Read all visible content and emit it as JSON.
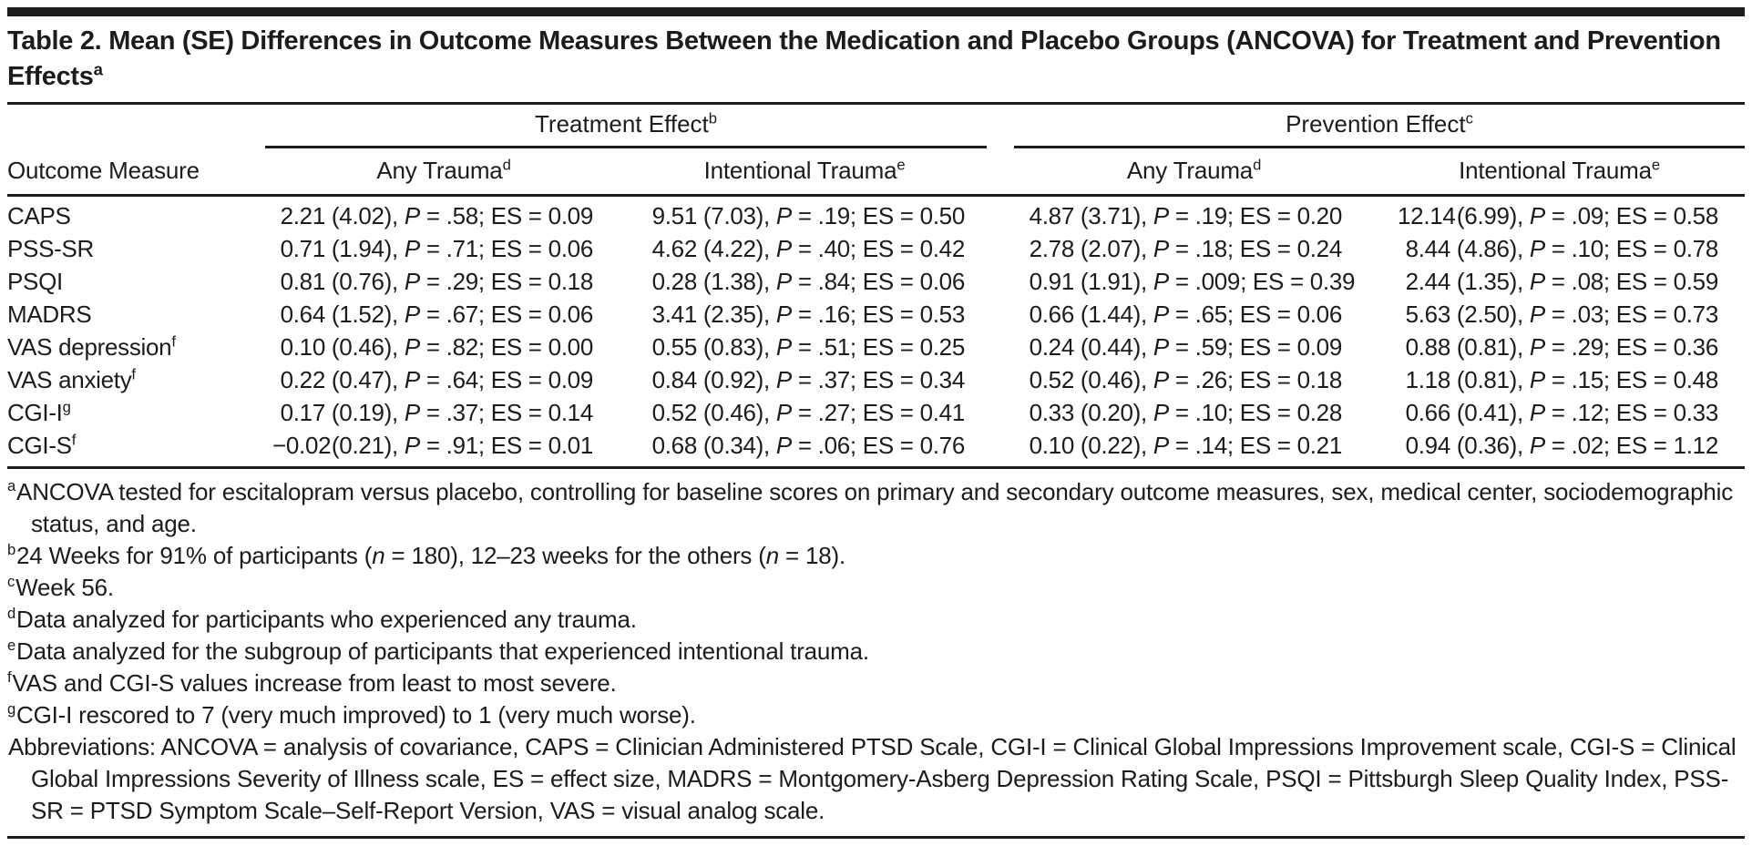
{
  "title": {
    "text": "Table 2. Mean (SE) Differences in Outcome Measures Between the Medication and Placebo Groups (ANCOVA) for Treatment and Prevention Effects",
    "sup": "a"
  },
  "table": {
    "row_header": "Outcome Measure",
    "col_groups": [
      {
        "label": "Treatment Effect",
        "sup": "b"
      },
      {
        "label": "Prevention Effect",
        "sup": "c"
      }
    ],
    "sub_headers": [
      {
        "label": "Any Trauma",
        "sup": "d"
      },
      {
        "label": "Intentional Trauma",
        "sup": "e"
      },
      {
        "label": "Any Trauma",
        "sup": "d"
      },
      {
        "label": "Intentional Trauma",
        "sup": "e"
      }
    ],
    "rows": [
      {
        "measure": "CAPS",
        "sup": "",
        "cells": [
          "2.21 (4.02), P = .58; ES = 0.09",
          "9.51 (7.03), P = .19; ES = 0.50",
          "4.87 (3.71), P = .19; ES = 0.20",
          "12.14 (6.99), P = .09; ES = 0.58"
        ]
      },
      {
        "measure": "PSS-SR",
        "sup": "",
        "cells": [
          "0.71 (1.94), P = .71; ES = 0.06",
          "4.62 (4.22), P = .40; ES = 0.42",
          "2.78 (2.07), P = .18; ES = 0.24",
          "8.44 (4.86), P = .10; ES = 0.78"
        ]
      },
      {
        "measure": "PSQI",
        "sup": "",
        "cells": [
          "0.81 (0.76), P = .29; ES = 0.18",
          "0.28 (1.38), P = .84; ES = 0.06",
          "0.91 (1.91), P = .009; ES = 0.39",
          "2.44 (1.35), P = .08; ES = 0.59"
        ]
      },
      {
        "measure": "MADRS",
        "sup": "",
        "cells": [
          "0.64 (1.52), P = .67; ES = 0.06",
          "3.41 (2.35), P = .16; ES = 0.53",
          "0.66 (1.44), P = .65; ES = 0.06",
          "5.63 (2.50), P = .03; ES = 0.73"
        ]
      },
      {
        "measure": "VAS depression",
        "sup": "f",
        "cells": [
          "0.10 (0.46), P = .82; ES = 0.00",
          "0.55 (0.83), P = .51; ES = 0.25",
          "0.24 (0.44), P = .59; ES = 0.09",
          "0.88 (0.81), P = .29; ES = 0.36"
        ]
      },
      {
        "measure": "VAS anxiety",
        "sup": "f",
        "cells": [
          "0.22 (0.47), P = .64; ES = 0.09",
          "0.84 (0.92), P = .37; ES = 0.34",
          "0.52 (0.46), P = .26; ES = 0.18",
          "1.18 (0.81), P = .15; ES = 0.48"
        ]
      },
      {
        "measure": "CGI-I",
        "sup": "g",
        "cells": [
          "0.17 (0.19), P = .37; ES = 0.14",
          "0.52 (0.46), P = .27; ES = 0.41",
          "0.33 (0.20), P = .10; ES = 0.28",
          "0.66 (0.41), P = .12; ES = 0.33"
        ]
      },
      {
        "measure": "CGI-S",
        "sup": "f",
        "cells": [
          "−0.02 (0.21), P = .91; ES = 0.01",
          "0.68 (0.34), P = .06; ES = 0.76",
          "0.10 (0.22), P = .14; ES = 0.21",
          "0.94 (0.36), P = .02; ES = 1.12"
        ]
      }
    ]
  },
  "footnotes": [
    {
      "sup": "a",
      "text": "ANCOVA tested for escitalopram versus placebo, controlling for baseline scores on primary and secondary outcome measures, sex, medical center, sociodemographic status, and age."
    },
    {
      "sup": "b",
      "text": "24 Weeks for 91% of participants (n = 180), 12–23 weeks for the others (n = 18)."
    },
    {
      "sup": "c",
      "text": "Week 56."
    },
    {
      "sup": "d",
      "text": "Data analyzed for participants who experienced any trauma."
    },
    {
      "sup": "e",
      "text": "Data analyzed for the subgroup of participants that experienced intentional trauma."
    },
    {
      "sup": "f",
      "text": "VAS and CGI-S values increase from least to most severe."
    },
    {
      "sup": "g",
      "text": "CGI-I rescored to 7 (very much improved) to 1 (very much worse)."
    },
    {
      "sup": "",
      "text": "Abbreviations: ANCOVA = analysis of covariance, CAPS = Clinician Administered PTSD Scale, CGI-I = Clinical Global Impressions Improvement scale, CGI-S = Clinical Global Impressions Severity of Illness scale, ES = effect size, MADRS = Montgomery-Asberg Depression Rating Scale, PSQI = Pittsburgh Sleep Quality Index, PSS-SR = PTSD Symptom Scale–Self-Report Version, VAS = visual analog scale."
    }
  ]
}
